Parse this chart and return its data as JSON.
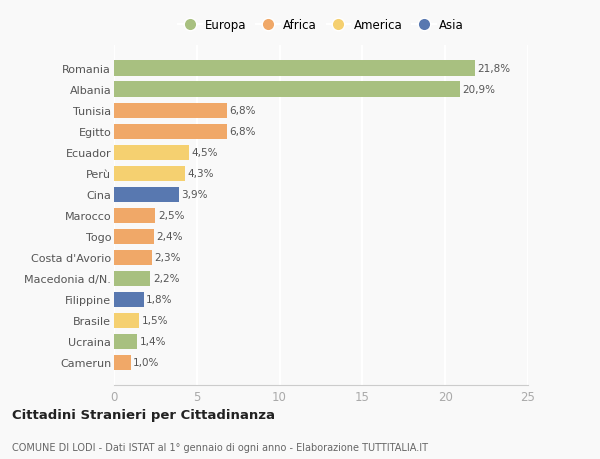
{
  "categories": [
    "Camerun",
    "Ucraina",
    "Brasile",
    "Filippine",
    "Macedonia d/N.",
    "Costa d'Avorio",
    "Togo",
    "Marocco",
    "Cina",
    "Perù",
    "Ecuador",
    "Egitto",
    "Tunisia",
    "Albania",
    "Romania"
  ],
  "values": [
    1.0,
    1.4,
    1.5,
    1.8,
    2.2,
    2.3,
    2.4,
    2.5,
    3.9,
    4.3,
    4.5,
    6.8,
    6.8,
    20.9,
    21.8
  ],
  "colors": [
    "#f0a868",
    "#a8c080",
    "#f5d070",
    "#5878b0",
    "#a8c080",
    "#f0a868",
    "#f0a868",
    "#f0a868",
    "#5878b0",
    "#f5d070",
    "#f5d070",
    "#f0a868",
    "#f0a868",
    "#a8c080",
    "#a8c080"
  ],
  "labels": [
    "1,0%",
    "1,4%",
    "1,5%",
    "1,8%",
    "2,2%",
    "2,3%",
    "2,4%",
    "2,5%",
    "3,9%",
    "4,3%",
    "4,5%",
    "6,8%",
    "6,8%",
    "20,9%",
    "21,8%"
  ],
  "legend": [
    {
      "label": "Europa",
      "color": "#a8c080"
    },
    {
      "label": "Africa",
      "color": "#f0a868"
    },
    {
      "label": "America",
      "color": "#f5d070"
    },
    {
      "label": "Asia",
      "color": "#5878b0"
    }
  ],
  "title": "Cittadini Stranieri per Cittadinanza",
  "subtitle": "COMUNE DI LODI - Dati ISTAT al 1° gennaio di ogni anno - Elaborazione TUTTITALIA.IT",
  "xlim": [
    0,
    25
  ],
  "xticks": [
    0,
    5,
    10,
    15,
    20,
    25
  ],
  "background_color": "#f9f9f9",
  "grid_color": "#e8e8e8",
  "bar_height": 0.72
}
